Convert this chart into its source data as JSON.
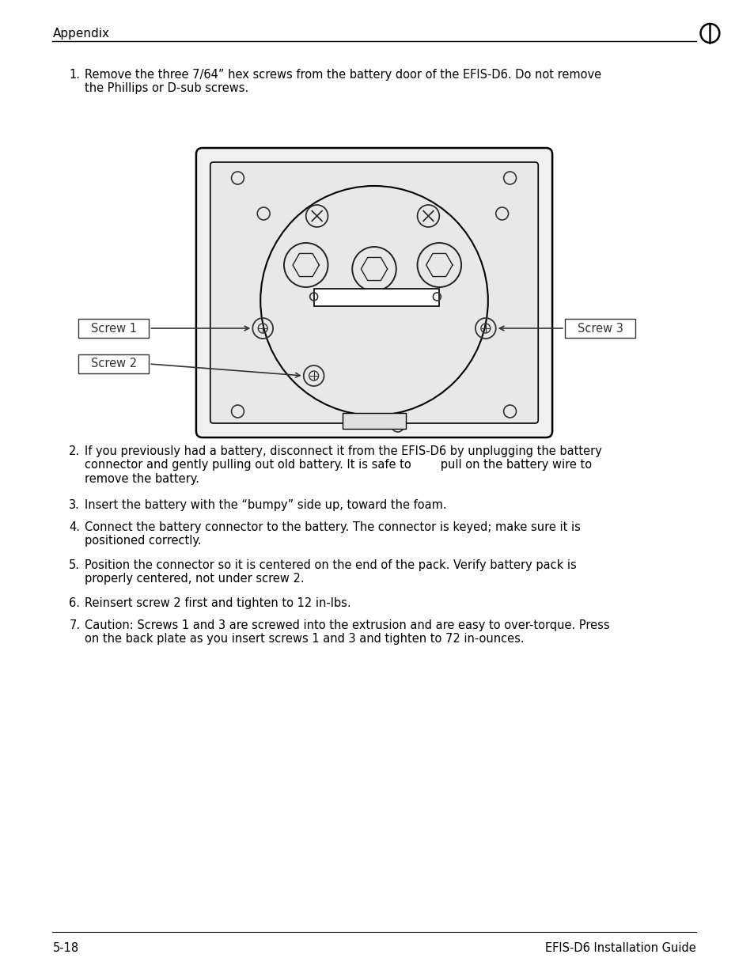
{
  "bg_color": "#ffffff",
  "text_color": "#000000",
  "header_text": "Appendix",
  "header_icon": "◑",
  "footer_left": "5-18",
  "footer_right": "EFIS-D6 Installation Guide",
  "items": [
    {
      "num": "1.",
      "text": "Remove the three 7/64” hex screws from the battery door of the EFIS-D6. Do not remove\nthe Phillips or D-sub screws."
    },
    {
      "num": "2.",
      "text": "If you previously had a battery, disconnect it from the EFIS-D6 by unplugging the battery\nconnector and gently pulling out old battery. It is safe to        pull on the battery wire to\nremove the battery."
    },
    {
      "num": "3.",
      "text": "Insert the battery with the “bumpy” side up, toward the foam."
    },
    {
      "num": "4.",
      "text": "Connect the battery connector to the battery. The connector is keyed; make sure it is\npositioned correctly."
    },
    {
      "num": "5.",
      "text": "Position the connector so it is centered on the end of the pack. Verify battery pack is\nproperly centered, not under screw 2."
    },
    {
      "num": "6.",
      "text": "Reinsert screw 2 first and tighten to 12 in-lbs."
    },
    {
      "num": "7.",
      "text": "Caution: Screws 1 and 3 are screwed into the extrusion and are easy to over-torque. Press\non the back plate as you insert screws 1 and 3 and tighten to 72 in-ounces."
    }
  ],
  "font_family": "DejaVu Sans",
  "font_size_body": 10.5,
  "font_size_header": 11,
  "font_size_footer": 10.5
}
